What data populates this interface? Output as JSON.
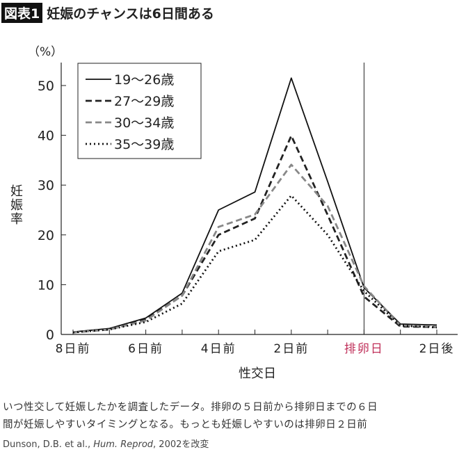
{
  "header": {
    "badge": "図表1",
    "title": "妊娠のチャンスは6日間ある"
  },
  "chart_data": {
    "type": "line",
    "ylabel": "妊娠率",
    "yunit": "（%）",
    "xlabel": "性交日",
    "ylim": [
      0,
      55
    ],
    "yticks": [
      0,
      10,
      20,
      30,
      40,
      50
    ],
    "x": [
      -8,
      -7,
      -6,
      -5,
      -4,
      -3,
      -2,
      -1,
      0,
      1,
      2
    ],
    "xtick_labels": [
      {
        "x": -8,
        "label": "8日前"
      },
      {
        "x": -6,
        "label": "6日前"
      },
      {
        "x": -4,
        "label": "4日前"
      },
      {
        "x": -2,
        "label": "2日前"
      },
      {
        "x": 0,
        "label": "排卵日",
        "color": "#c0305a"
      },
      {
        "x": 2,
        "label": "2日後"
      }
    ],
    "reference_line_x": 0,
    "legend_position": "top-left",
    "series": [
      {
        "name": "19〜26歳",
        "style": "solid",
        "color": "#111111",
        "values": [
          0.5,
          1.2,
          3.3,
          8.3,
          25.0,
          28.6,
          51.5,
          30.7,
          9.4,
          2.1,
          1.9
        ]
      },
      {
        "name": "27〜29歳",
        "style": "dashed",
        "color": "#222222",
        "values": [
          0.4,
          1.0,
          3.0,
          7.8,
          20.0,
          23.3,
          39.9,
          24.0,
          7.6,
          1.6,
          1.5
        ]
      },
      {
        "name": "30〜34歳",
        "style": "dashed",
        "color": "#888888",
        "values": [
          0.4,
          1.0,
          2.8,
          7.8,
          21.6,
          24.1,
          34.1,
          25.8,
          9.7,
          1.8,
          1.6
        ]
      },
      {
        "name": "35〜39歳",
        "style": "dotted",
        "color": "#111111",
        "values": [
          0.4,
          1.0,
          2.5,
          6.2,
          16.7,
          19.0,
          27.9,
          20.0,
          8.7,
          1.8,
          1.4
        ]
      }
    ]
  },
  "caption": {
    "line1": "いつ性交して妊娠したかを調査したデータ。排卵の５日前から排卵日までの６日",
    "line2": "間が妊娠しやすいタイミングとなる。もっとも妊娠しやすいのは排卵日２日前"
  },
  "source": {
    "authors": "Dunson, D.B. et al., ",
    "journal": "Hum. Reprod",
    "rest": ", 2002を改変"
  }
}
